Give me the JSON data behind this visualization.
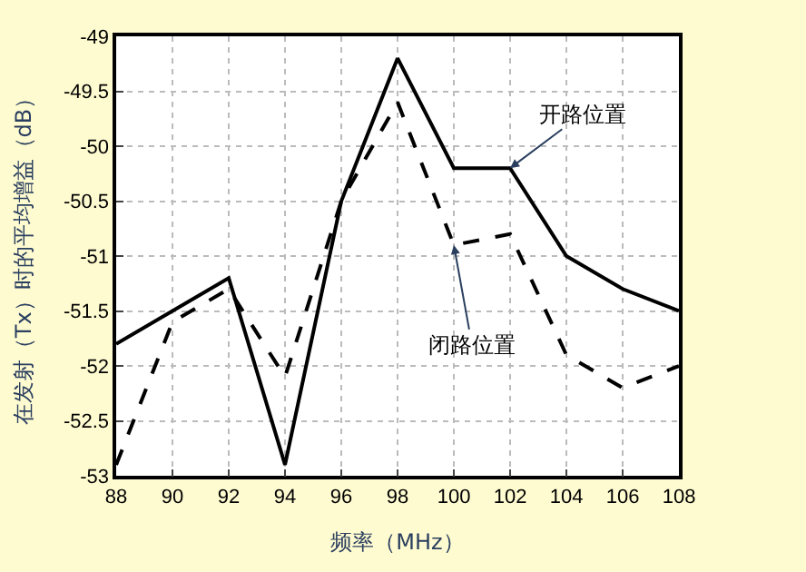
{
  "chart_data": {
    "type": "line",
    "xlabel": "频率（MHz）",
    "ylabel": "在发射（Tx）时的平均增益（dB）",
    "x": [
      88,
      90,
      92,
      94,
      96,
      98,
      100,
      102,
      104,
      106,
      108
    ],
    "series": [
      {
        "name": "开路位置",
        "color": "#000000",
        "line_style": "solid",
        "values": [
          -51.8,
          -51.5,
          -51.2,
          -52.9,
          -50.5,
          -49.2,
          -50.2,
          -50.2,
          -51.0,
          -51.3,
          -51.5
        ]
      },
      {
        "name": "闭路位置",
        "color": "#000000",
        "line_style": "dashed",
        "values": [
          -52.9,
          -51.6,
          -51.3,
          -52.1,
          -50.5,
          -49.6,
          -50.9,
          -50.8,
          -51.9,
          -52.2,
          -52.0
        ]
      }
    ],
    "xlim": [
      88,
      108
    ],
    "xticks": [
      88,
      90,
      92,
      94,
      96,
      98,
      100,
      102,
      104,
      106,
      108
    ],
    "ylim": [
      -53,
      -49
    ],
    "yticks": [
      -53,
      -52.5,
      -52,
      -51.5,
      -51,
      -50.5,
      -50,
      -49.5,
      -49
    ],
    "grid": true,
    "legend": false,
    "marker": "none"
  }
}
